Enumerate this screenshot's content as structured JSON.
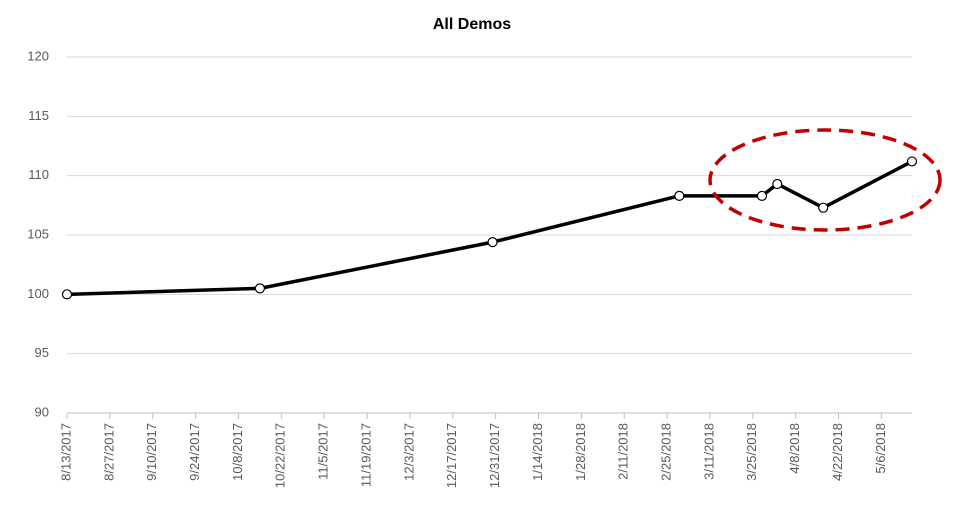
{
  "chart_data": {
    "type": "line",
    "title": "All Demos",
    "x": [
      "2017-08-13",
      "2017-10-15",
      "2017-12-30",
      "2018-03-01",
      "2018-03-28",
      "2018-04-02",
      "2018-04-17",
      "2018-05-16"
    ],
    "series": [
      {
        "name": "All Demos",
        "color": "#000000",
        "values": [
          100,
          100.5,
          104.4,
          108.3,
          108.3,
          109.3,
          107.3,
          111.2
        ]
      }
    ],
    "xlim": [
      "2017-08-13",
      "2018-05-16"
    ],
    "xticks": [
      {
        "value": "2017-08-13",
        "label": "8/13/2017"
      },
      {
        "value": "2017-08-27",
        "label": "8/27/2017"
      },
      {
        "value": "2017-09-10",
        "label": "9/10/2017"
      },
      {
        "value": "2017-09-24",
        "label": "9/24/2017"
      },
      {
        "value": "2017-10-08",
        "label": "10/8/2017"
      },
      {
        "value": "2017-10-22",
        "label": "10/22/2017"
      },
      {
        "value": "2017-11-05",
        "label": "11/5/2017"
      },
      {
        "value": "2017-11-19",
        "label": "11/19/2017"
      },
      {
        "value": "2017-12-03",
        "label": "12/3/2017"
      },
      {
        "value": "2017-12-17",
        "label": "12/17/2017"
      },
      {
        "value": "2017-12-31",
        "label": "12/31/2017"
      },
      {
        "value": "2018-01-14",
        "label": "1/14/2018"
      },
      {
        "value": "2018-01-28",
        "label": "1/28/2018"
      },
      {
        "value": "2018-02-11",
        "label": "2/11/2018"
      },
      {
        "value": "2018-02-25",
        "label": "2/25/2018"
      },
      {
        "value": "2018-03-11",
        "label": "3/11/2018"
      },
      {
        "value": "2018-03-25",
        "label": "3/25/2018"
      },
      {
        "value": "2018-04-08",
        "label": "4/8/2018"
      },
      {
        "value": "2018-04-22",
        "label": "4/22/2018"
      },
      {
        "value": "2018-05-06",
        "label": "5/6/2018"
      }
    ],
    "ylim": [
      90,
      120
    ],
    "yticks": [
      90,
      95,
      100,
      105,
      110,
      115,
      120
    ],
    "grid": true
  }
}
